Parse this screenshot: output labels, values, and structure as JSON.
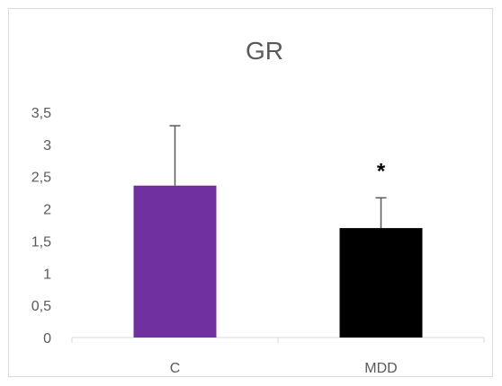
{
  "chart_data": {
    "type": "bar",
    "title": "GR",
    "xlabel": "",
    "ylabel": "",
    "categories": [
      "C",
      "MDD"
    ],
    "values": [
      2.36,
      1.7
    ],
    "errors": [
      0.93,
      0.47
    ],
    "colors": [
      "#7030A0",
      "#000000"
    ],
    "error_color": "#595959",
    "ylim": [
      0,
      3.5
    ],
    "yticks": [
      "0",
      "0,5",
      "1",
      "1,5",
      "2",
      "2,5",
      "3",
      "3,5"
    ],
    "annotations": [
      {
        "category": "MDD",
        "text": "*"
      }
    ],
    "grid": false,
    "legend": "none"
  }
}
